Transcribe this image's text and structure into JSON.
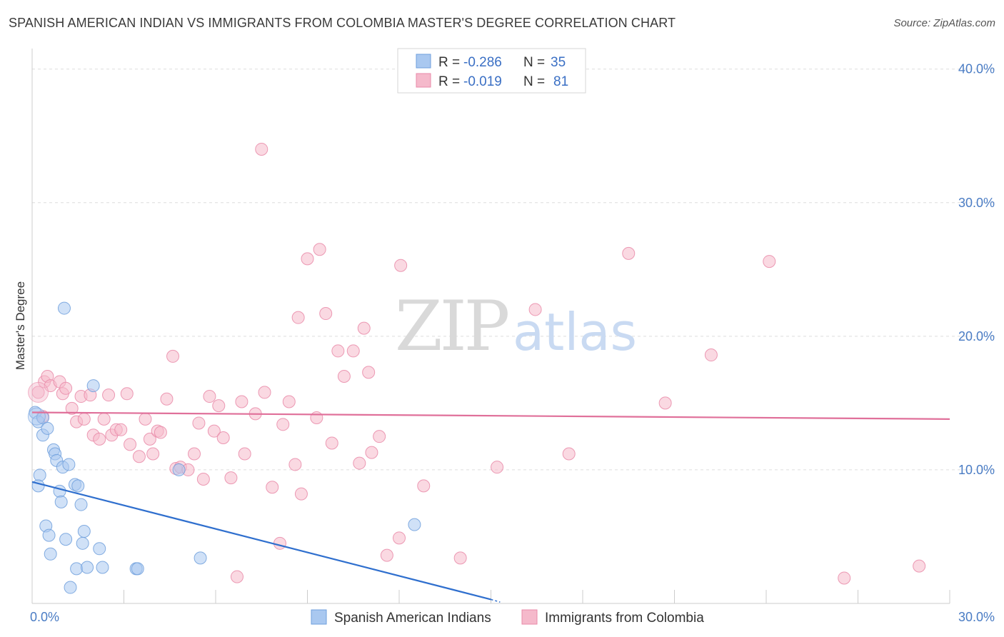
{
  "header": {
    "title": "SPANISH AMERICAN INDIAN VS IMMIGRANTS FROM COLOMBIA MASTER'S DEGREE CORRELATION CHART",
    "source": "Source: ZipAtlas.com"
  },
  "watermark": {
    "zip": "ZIP",
    "atlas": "atlas"
  },
  "legend_box": {
    "rows": [
      {
        "r_label": "R =",
        "r_value": "-0.286",
        "n_label": "N =",
        "n_value": "35"
      },
      {
        "r_label": "R =",
        "r_value": "-0.019",
        "n_label": "N =",
        "n_value": "81"
      }
    ]
  },
  "colors": {
    "blue_fill": "#a9c8f0",
    "blue_stroke": "#6f9fdc",
    "blue_line": "#2f6fce",
    "pink_fill": "#f5b9cb",
    "pink_stroke": "#e98aa8",
    "pink_line": "#e0709a",
    "grid": "#dddddd",
    "axis": "#cccccc"
  },
  "chart_data": {
    "type": "scatter",
    "title": "SPANISH AMERICAN INDIAN VS IMMIGRANTS FROM COLOMBIA MASTER'S DEGREE CORRELATION CHART",
    "xlabel": "",
    "ylabel": "Master's Degree",
    "xlim": [
      0,
      30
    ],
    "ylim": [
      0,
      41
    ],
    "x_ticks": [
      "0.0%",
      "30.0%"
    ],
    "y_ticks": [
      {
        "value": 10,
        "label": "10.0%"
      },
      {
        "value": 20,
        "label": "20.0%"
      },
      {
        "value": 30,
        "label": "30.0%"
      },
      {
        "value": 40,
        "label": "40.0%"
      }
    ],
    "series": [
      {
        "name": "Spanish American Indians",
        "R": -0.286,
        "N": 35,
        "trend": {
          "x": [
            0.0,
            15.0
          ],
          "y": [
            9.1,
            0.3
          ]
        },
        "points": [
          [
            0.1,
            14.3
          ],
          [
            0.2,
            13.6
          ],
          [
            0.25,
            9.6
          ],
          [
            0.2,
            8.8
          ],
          [
            0.35,
            13.9
          ],
          [
            0.35,
            12.6
          ],
          [
            0.5,
            13.1
          ],
          [
            0.7,
            11.5
          ],
          [
            0.75,
            11.2
          ],
          [
            0.8,
            10.7
          ],
          [
            1.0,
            10.2
          ],
          [
            1.2,
            10.4
          ],
          [
            0.45,
            5.8
          ],
          [
            0.55,
            5.1
          ],
          [
            0.6,
            3.7
          ],
          [
            0.9,
            8.4
          ],
          [
            0.95,
            7.6
          ],
          [
            1.1,
            4.8
          ],
          [
            1.4,
            8.9
          ],
          [
            1.5,
            8.8
          ],
          [
            1.6,
            7.4
          ],
          [
            1.7,
            5.4
          ],
          [
            1.65,
            4.5
          ],
          [
            2.2,
            4.1
          ],
          [
            1.45,
            2.6
          ],
          [
            1.8,
            2.7
          ],
          [
            2.3,
            2.7
          ],
          [
            3.4,
            2.6
          ],
          [
            3.45,
            2.6
          ],
          [
            1.25,
            1.2
          ],
          [
            1.05,
            22.1
          ],
          [
            2.0,
            16.3
          ],
          [
            4.8,
            10.0
          ],
          [
            5.5,
            3.4
          ],
          [
            12.5,
            5.9
          ]
        ]
      },
      {
        "name": "Immigrants from Colombia",
        "R": -0.019,
        "N": 81,
        "trend": {
          "x": [
            0.0,
            30.0
          ],
          "y": [
            14.3,
            13.8
          ]
        },
        "points": [
          [
            0.2,
            15.8
          ],
          [
            0.4,
            16.6
          ],
          [
            0.5,
            17.0
          ],
          [
            0.6,
            16.3
          ],
          [
            0.35,
            14.0
          ],
          [
            0.9,
            16.6
          ],
          [
            1.0,
            15.7
          ],
          [
            1.1,
            16.1
          ],
          [
            1.3,
            14.6
          ],
          [
            1.45,
            13.6
          ],
          [
            1.6,
            15.5
          ],
          [
            1.7,
            13.8
          ],
          [
            1.9,
            15.6
          ],
          [
            2.0,
            12.6
          ],
          [
            2.2,
            12.3
          ],
          [
            2.35,
            13.8
          ],
          [
            2.5,
            15.6
          ],
          [
            2.6,
            12.6
          ],
          [
            2.75,
            13.0
          ],
          [
            2.9,
            13.0
          ],
          [
            3.1,
            15.7
          ],
          [
            3.2,
            11.9
          ],
          [
            3.5,
            11.0
          ],
          [
            3.7,
            13.8
          ],
          [
            3.85,
            12.3
          ],
          [
            3.95,
            11.2
          ],
          [
            4.1,
            12.9
          ],
          [
            4.2,
            12.8
          ],
          [
            4.4,
            15.3
          ],
          [
            4.6,
            18.5
          ],
          [
            4.7,
            10.1
          ],
          [
            4.85,
            10.2
          ],
          [
            5.1,
            10.0
          ],
          [
            5.3,
            11.2
          ],
          [
            5.45,
            13.5
          ],
          [
            5.6,
            9.3
          ],
          [
            5.8,
            15.5
          ],
          [
            5.95,
            12.9
          ],
          [
            6.1,
            14.8
          ],
          [
            6.25,
            12.4
          ],
          [
            6.5,
            9.4
          ],
          [
            6.7,
            2.0
          ],
          [
            6.85,
            15.1
          ],
          [
            6.95,
            11.2
          ],
          [
            7.3,
            14.2
          ],
          [
            7.6,
            15.8
          ],
          [
            7.5,
            34.0
          ],
          [
            7.85,
            8.7
          ],
          [
            8.1,
            4.5
          ],
          [
            8.2,
            13.4
          ],
          [
            8.4,
            15.1
          ],
          [
            8.6,
            10.4
          ],
          [
            8.7,
            21.4
          ],
          [
            8.8,
            8.2
          ],
          [
            9.0,
            25.8
          ],
          [
            9.3,
            13.9
          ],
          [
            9.4,
            26.5
          ],
          [
            9.6,
            21.7
          ],
          [
            9.8,
            12.0
          ],
          [
            10.0,
            18.9
          ],
          [
            10.2,
            17.0
          ],
          [
            10.5,
            18.9
          ],
          [
            10.7,
            10.5
          ],
          [
            10.85,
            20.6
          ],
          [
            11.0,
            17.3
          ],
          [
            11.1,
            11.3
          ],
          [
            11.35,
            12.5
          ],
          [
            11.6,
            3.6
          ],
          [
            12.05,
            25.3
          ],
          [
            12.8,
            8.8
          ],
          [
            14.0,
            3.4
          ],
          [
            15.2,
            10.2
          ],
          [
            16.45,
            22.0
          ],
          [
            17.55,
            11.2
          ],
          [
            19.5,
            26.2
          ],
          [
            20.7,
            15.0
          ],
          [
            22.2,
            18.6
          ],
          [
            24.1,
            25.6
          ],
          [
            26.55,
            1.9
          ],
          [
            29.0,
            2.8
          ],
          [
            12.0,
            4.9
          ]
        ]
      }
    ],
    "legend": [
      "Spanish American Indians",
      "Immigrants from Colombia"
    ],
    "legend_placement": "top-center and bottom"
  }
}
